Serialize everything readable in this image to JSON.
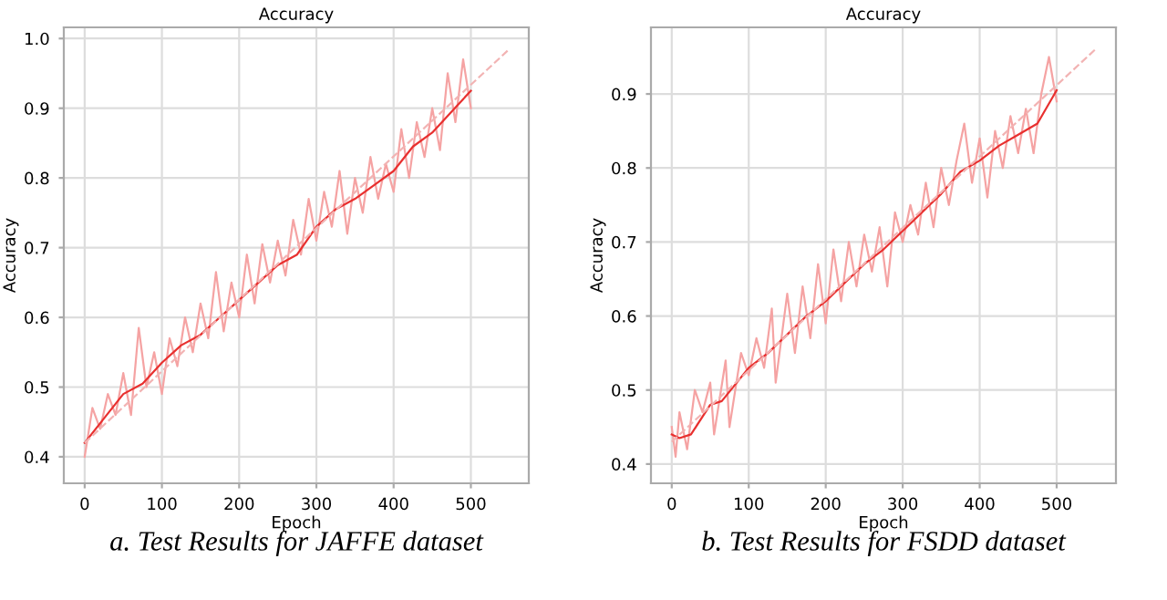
{
  "chart_data": [
    {
      "type": "line",
      "title": "Accuracy",
      "xlabel": "Epoch",
      "ylabel": "Accuracy",
      "xlim": [
        -27,
        575
      ],
      "ylim": [
        0.362,
        1.016
      ],
      "xticks": [
        0,
        100,
        200,
        300,
        400,
        500
      ],
      "yticks": [
        0.4,
        0.5,
        0.6,
        0.7,
        0.8,
        0.9,
        {
          "value": 1.0,
          "label": "1.0"
        }
      ],
      "grid": true,
      "annotations": [
        "a. Test Results for JAFFE dataset"
      ],
      "series": [
        {
          "color": "#f5a3a3",
          "x": [
            0,
            10,
            20,
            30,
            40,
            50,
            60,
            70,
            80,
            90,
            100,
            110,
            120,
            130,
            140,
            150,
            160,
            170,
            180,
            190,
            200,
            210,
            220,
            230,
            240,
            250,
            260,
            270,
            280,
            290,
            300,
            310,
            320,
            330,
            340,
            350,
            360,
            370,
            380,
            390,
            400,
            410,
            420,
            430,
            440,
            450,
            460,
            470,
            480,
            490,
            500
          ],
          "values": [
            0.4,
            0.47,
            0.44,
            0.49,
            0.46,
            0.52,
            0.46,
            0.585,
            0.5,
            0.55,
            0.49,
            0.57,
            0.53,
            0.6,
            0.55,
            0.62,
            0.57,
            0.665,
            0.58,
            0.65,
            0.6,
            0.69,
            0.62,
            0.705,
            0.65,
            0.71,
            0.66,
            0.74,
            0.69,
            0.77,
            0.71,
            0.78,
            0.73,
            0.81,
            0.72,
            0.8,
            0.75,
            0.83,
            0.77,
            0.82,
            0.78,
            0.87,
            0.8,
            0.88,
            0.83,
            0.9,
            0.84,
            0.95,
            0.88,
            0.97,
            0.9
          ]
        },
        {
          "color": "#e8302f",
          "x": [
            0,
            25,
            50,
            75,
            100,
            125,
            150,
            175,
            200,
            225,
            250,
            275,
            300,
            325,
            350,
            375,
            400,
            425,
            450,
            475,
            500
          ],
          "values": [
            0.42,
            0.455,
            0.49,
            0.505,
            0.535,
            0.56,
            0.575,
            0.6,
            0.625,
            0.65,
            0.675,
            0.69,
            0.73,
            0.755,
            0.77,
            0.79,
            0.81,
            0.845,
            0.865,
            0.895,
            0.925
          ]
        },
        {
          "color": "#f2b3b3",
          "line_style": "dashed",
          "x": [
            0,
            550
          ],
          "values": [
            0.42,
            0.985
          ]
        }
      ]
    },
    {
      "type": "line",
      "title": "Accuracy",
      "xlabel": "Epoch",
      "ylabel": "Accuracy",
      "xlim": [
        -27,
        577
      ],
      "ylim": [
        0.374,
        0.99
      ],
      "xticks": [
        0,
        100,
        200,
        300,
        400,
        500
      ],
      "yticks": [
        0.4,
        0.5,
        0.6,
        0.7,
        0.8,
        0.9
      ],
      "grid": true,
      "annotations": [
        "b. Test Results for FSDD dataset"
      ],
      "series": [
        {
          "color": "#f5a3a3",
          "x": [
            0,
            5,
            10,
            20,
            30,
            40,
            50,
            55,
            70,
            75,
            90,
            100,
            110,
            120,
            130,
            135,
            150,
            160,
            170,
            180,
            190,
            200,
            210,
            220,
            230,
            240,
            250,
            260,
            270,
            280,
            290,
            300,
            310,
            320,
            330,
            340,
            350,
            360,
            370,
            380,
            390,
            400,
            410,
            420,
            430,
            440,
            450,
            460,
            470,
            480,
            490,
            500
          ],
          "values": [
            0.45,
            0.41,
            0.47,
            0.42,
            0.5,
            0.47,
            0.51,
            0.44,
            0.54,
            0.45,
            0.55,
            0.52,
            0.57,
            0.53,
            0.61,
            0.51,
            0.63,
            0.55,
            0.64,
            0.57,
            0.67,
            0.59,
            0.69,
            0.62,
            0.7,
            0.64,
            0.71,
            0.66,
            0.72,
            0.64,
            0.74,
            0.7,
            0.75,
            0.71,
            0.78,
            0.72,
            0.8,
            0.75,
            0.81,
            0.86,
            0.78,
            0.84,
            0.76,
            0.85,
            0.8,
            0.87,
            0.82,
            0.88,
            0.82,
            0.9,
            0.95,
            0.89
          ]
        },
        {
          "color": "#e8302f",
          "x": [
            0,
            10,
            25,
            50,
            65,
            100,
            125,
            150,
            175,
            200,
            225,
            250,
            275,
            300,
            325,
            350,
            375,
            400,
            425,
            450,
            475,
            500
          ],
          "values": [
            0.44,
            0.435,
            0.44,
            0.48,
            0.485,
            0.53,
            0.55,
            0.575,
            0.6,
            0.62,
            0.645,
            0.67,
            0.69,
            0.715,
            0.74,
            0.765,
            0.795,
            0.81,
            0.83,
            0.845,
            0.86,
            0.905
          ]
        },
        {
          "color": "#f2b3b3",
          "line_style": "dashed",
          "x": [
            0,
            550
          ],
          "values": [
            0.43,
            0.96
          ]
        }
      ]
    }
  ]
}
